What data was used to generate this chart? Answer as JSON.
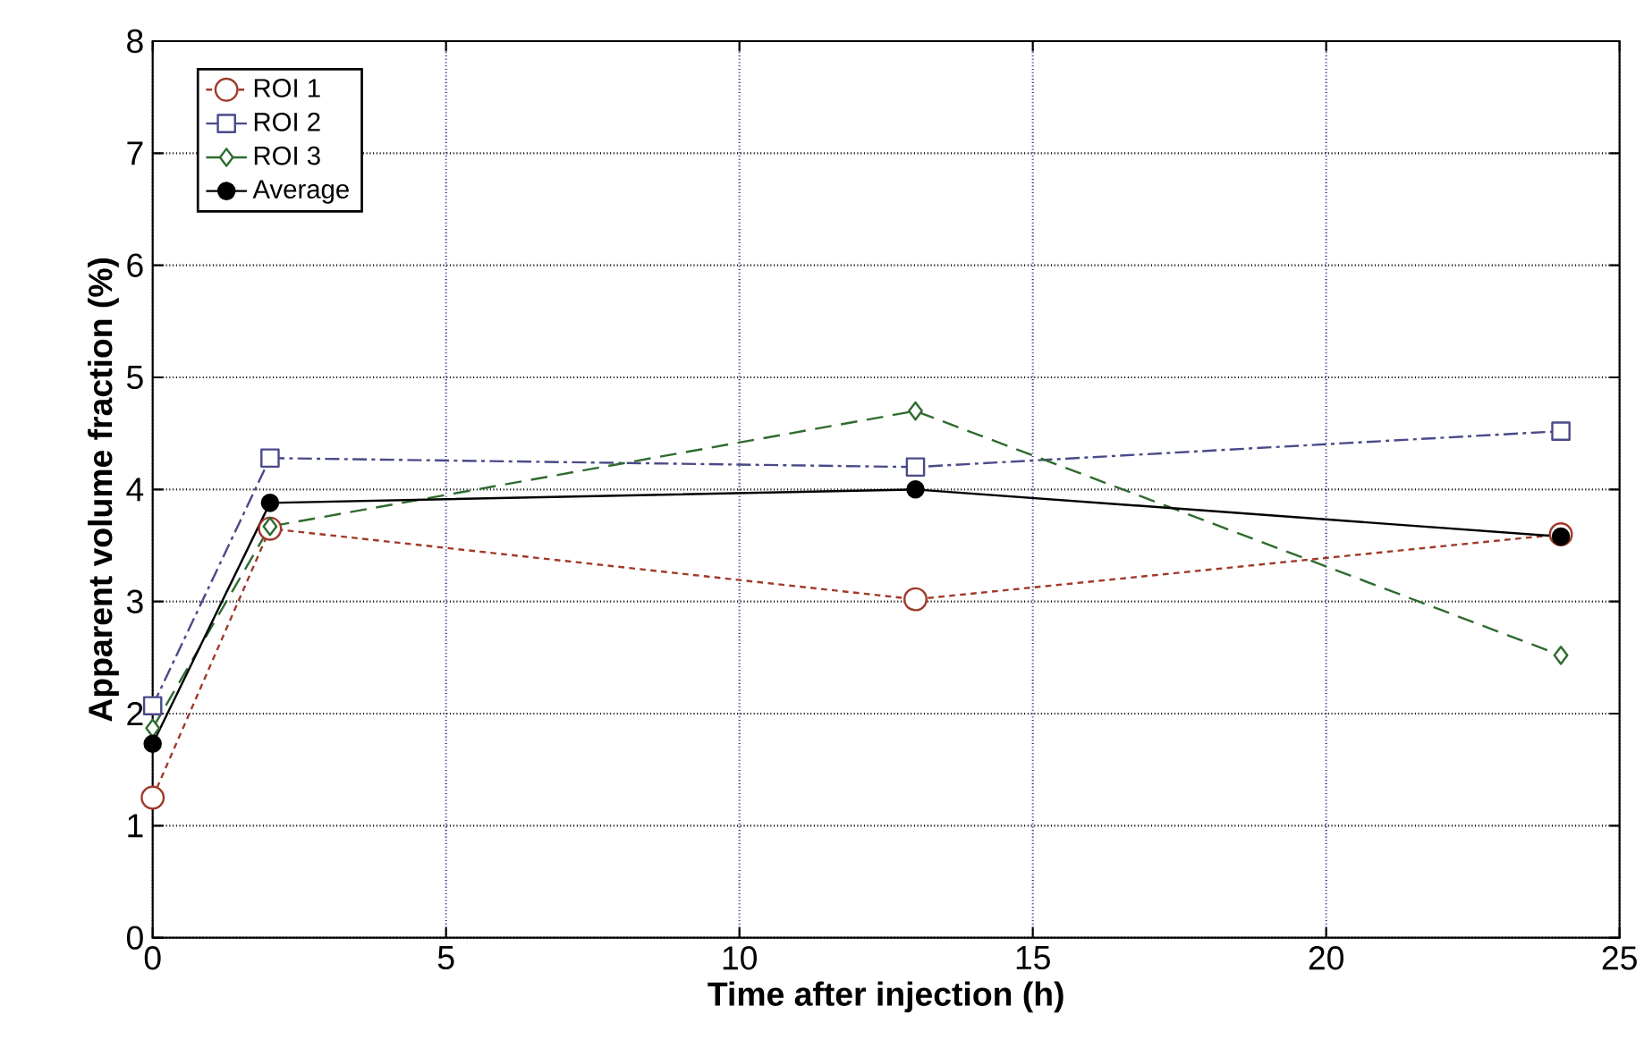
{
  "chart_data": {
    "type": "line",
    "xlabel": "Time after injection (h)",
    "ylabel": "Apparent volume fraction (%)",
    "xlim": [
      0,
      25
    ],
    "xticks": [
      0,
      5,
      10,
      15,
      20,
      25
    ],
    "ylim": [
      0,
      8
    ],
    "yticks": [
      0,
      1,
      2,
      3,
      4,
      5,
      6,
      7,
      8
    ],
    "grid": true,
    "legend": "top left",
    "series": [
      {
        "name": "ROI 1",
        "color": "#a0392a",
        "marker": "circle",
        "line_style": "dotted",
        "x": [
          0,
          2,
          13,
          24
        ],
        "values": [
          1.25,
          3.65,
          3.02,
          3.6
        ]
      },
      {
        "name": "ROI 2",
        "color": "#4a4a8a",
        "marker": "square",
        "line_style": "dashdot",
        "x": [
          0,
          2,
          13,
          24
        ],
        "values": [
          2.07,
          4.28,
          4.2,
          4.52
        ]
      },
      {
        "name": "ROI 3",
        "color": "#2f6b2f",
        "marker": "diamond",
        "line_style": "dashed",
        "x": [
          0,
          2,
          13,
          24
        ],
        "values": [
          1.87,
          3.67,
          4.7,
          2.52
        ]
      },
      {
        "name": "Average",
        "color": "#000000",
        "marker": "filled circle",
        "line_style": "solid",
        "x": [
          0,
          2,
          13,
          24
        ],
        "values": [
          1.73,
          3.88,
          4.0,
          3.58
        ]
      }
    ]
  }
}
